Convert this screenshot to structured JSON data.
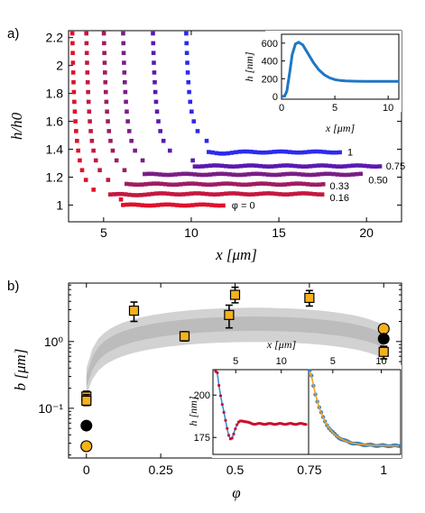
{
  "chart_data": [
    {
      "id": "a",
      "panel_label": "a)",
      "type": "scatter",
      "xlabel": "x [μm]",
      "ylabel": "h/h0",
      "xlim": [
        3,
        22
      ],
      "ylim": [
        0.88,
        2.25
      ],
      "xticks": [
        5,
        10,
        15,
        20
      ],
      "yticks": [
        1,
        1.2,
        1.4,
        1.6,
        1.8,
        2,
        2.2
      ],
      "series": [
        {
          "name": "φ = 0",
          "color": "#e0102a",
          "x0": 3.6,
          "x_end": 12.0,
          "plateau": 1.0,
          "dip": 0.94,
          "dip_x": 4.5,
          "top_x": 3.2
        },
        {
          "name": "0.16",
          "color": "#c41840",
          "x0": 4.8,
          "x_end": 17.6,
          "plateau": 1.08,
          "dip": 1.07,
          "dip_x": 6.6,
          "top_x": 4.0
        },
        {
          "name": "0.33",
          "color": "#a01c60",
          "x0": 5.8,
          "x_end": 17.6,
          "plateau": 1.15,
          "dip": 1.15,
          "dip_x": 9.0,
          "top_x": 5.0
        },
        {
          "name": "0.50",
          "color": "#7a1e86",
          "x0": 7.0,
          "x_end": 19.8,
          "plateau": 1.22,
          "dip": 1.22,
          "dip_x": 12.0,
          "top_x": 6.1
        },
        {
          "name": "0.75",
          "color": "#5a1ab0",
          "x0": 8.5,
          "x_end": 20.8,
          "plateau": 1.28,
          "dip": 1.28,
          "dip_x": 13.0,
          "top_x": 7.8
        },
        {
          "name": "1",
          "color": "#2b2af0",
          "x0": 10.0,
          "x_end": 18.6,
          "plateau": 1.38,
          "dip": 1.37,
          "dip_x": 11.6,
          "top_x": 9.7
        }
      ],
      "inset": {
        "type": "line",
        "xlabel": "x [μm]",
        "ylabel": "h [nm]",
        "xlim": [
          0,
          11
        ],
        "ylim": [
          -30,
          700
        ],
        "xticks": [
          0,
          5,
          10
        ],
        "yticks": [
          0,
          200,
          400,
          600
        ],
        "color": "#1f77c4",
        "x": [
          0,
          0.3,
          0.5,
          0.8,
          1.0,
          1.3,
          1.6,
          2.0,
          2.5,
          3.0,
          3.5,
          4.0,
          4.5,
          5.0,
          5.5,
          6.0,
          7.0,
          8.0,
          9.0,
          10.0,
          11.0
        ],
        "y": [
          0,
          5,
          60,
          300,
          470,
          590,
          610,
          580,
          480,
          380,
          300,
          245,
          210,
          190,
          180,
          176,
          172,
          170,
          170,
          170,
          170
        ]
      }
    },
    {
      "id": "b",
      "panel_label": "b)",
      "type": "scatter",
      "xlabel": "φ",
      "ylabel": "b [μm]",
      "xlim": [
        -0.06,
        1.06
      ],
      "ylim_log": [
        0.018,
        7.5
      ],
      "xticks": [
        "0",
        "0.25",
        "0.5",
        "0.75",
        "1"
      ],
      "xtick_values": [
        0,
        0.25,
        0.5,
        0.75,
        1
      ],
      "yticks": [
        "10⁻¹",
        "10⁰"
      ],
      "ytick_values": [
        0.1,
        1
      ],
      "squares": {
        "color": "#f5b21a",
        "x": [
          0,
          0,
          0.16,
          0.33,
          0.48,
          0.5,
          0.75,
          1.0
        ],
        "y": [
          0.15,
          0.13,
          2.9,
          1.2,
          2.5,
          5.0,
          4.5,
          0.7
        ],
        "err_low": [
          0.12,
          0.11,
          2.0,
          1.02,
          1.6,
          3.8,
          3.4,
          0.55
        ],
        "err_high": [
          0.18,
          0.16,
          3.9,
          1.4,
          3.5,
          6.5,
          5.8,
          0.85
        ]
      },
      "black_circles": {
        "color": "#000000",
        "x": [
          0,
          1.0
        ],
        "y": [
          0.055,
          1.1
        ]
      },
      "orange_circles": {
        "color": "#f5b21a",
        "x": [
          0,
          1.0
        ],
        "y": [
          0.027,
          1.55
        ]
      },
      "band": {
        "color": "#c8c8c8"
      },
      "inset": {
        "xlabel": "x [μm]",
        "ylabel": "h [nm]",
        "xticks_left": [
          5,
          10
        ],
        "xticks_right": [
          5,
          10
        ],
        "yticks": [
          175,
          200
        ],
        "ylim": [
          165,
          215
        ]
      }
    }
  ]
}
